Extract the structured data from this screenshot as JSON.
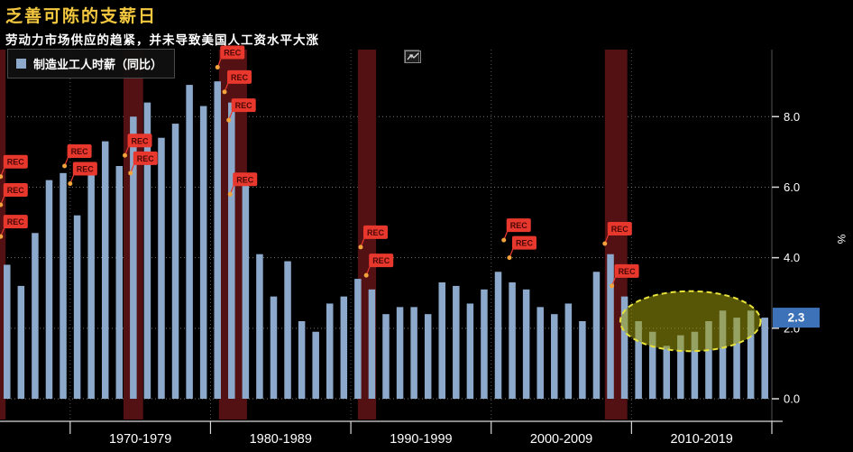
{
  "header": {
    "title": "乏善可陈的支薪日",
    "subtitle": "劳动力市场供应的趋紧，并未导致美国人工资水平大涨",
    "title_color": "#F5C93F",
    "subtitle_color": "#FFFFFF"
  },
  "legend": {
    "label": "制造业工人时薪（同比）",
    "swatch_color": "#8CA9CC"
  },
  "axis": {
    "unit": "%",
    "last_value": "2.3",
    "y_tick_labels": [
      "0.0",
      "2.0",
      "4.0",
      "6.0",
      "8.0"
    ],
    "x_section_labels": [
      "1970-1979",
      "1980-1989",
      "1990-1999",
      "2000-2009",
      "2010-2019"
    ]
  },
  "chart_data": {
    "type": "bar",
    "title": "乏善可陈的支薪日",
    "subtitle": "劳动力市场供应的趋紧，并未导致美国人工资水平大涨",
    "series_name": "制造业工人时薪（同比）",
    "x_start_year": 1965,
    "x_end_year": 2019,
    "values": [
      3.8,
      3.2,
      4.7,
      6.2,
      6.4,
      5.2,
      6.7,
      7.3,
      6.6,
      8.0,
      8.4,
      7.4,
      7.8,
      8.9,
      8.3,
      9.0,
      8.4,
      6.1,
      4.1,
      2.9,
      3.9,
      2.2,
      1.9,
      2.7,
      2.9,
      3.4,
      3.1,
      2.4,
      2.6,
      2.6,
      2.4,
      3.3,
      3.2,
      2.7,
      3.1,
      3.6,
      3.3,
      3.1,
      2.6,
      2.4,
      2.7,
      2.2,
      3.6,
      4.1,
      2.9,
      2.2,
      1.9,
      1.5,
      1.8,
      1.9,
      2.2,
      2.5,
      2.3,
      2.5,
      2.3
    ],
    "ylabel": "%",
    "ylim": [
      0,
      9.9
    ],
    "y_ticks": [
      0,
      2,
      4,
      6,
      8
    ],
    "y_tick_labels": [
      "0.0",
      "2.0",
      "4.0",
      "6.0",
      "8.0"
    ],
    "x_boundaries": [
      1970,
      1980,
      1990,
      2000,
      2010,
      2020
    ],
    "x_axis_sections": [
      "1970-1979",
      "1980-1989",
      "1990-1999",
      "2000-2009",
      "2010-2019"
    ],
    "grid": "dotted",
    "legend_position": "top-left",
    "last_value_label": "2.3",
    "recession_flag_label": "REC",
    "recession_bands": [
      [
        1965.0,
        1965.4
      ],
      [
        1973.8,
        1975.2
      ],
      [
        1980.6,
        1982.6
      ],
      [
        1990.5,
        1991.8
      ],
      [
        2008.1,
        2009.7
      ]
    ],
    "recession_flags": [
      {
        "x": 1965.05,
        "y": 6.3
      },
      {
        "x": 1965.05,
        "y": 5.5
      },
      {
        "x": 1965.05,
        "y": 4.6
      },
      {
        "x": 1969.6,
        "y": 6.6
      },
      {
        "x": 1970.0,
        "y": 6.1
      },
      {
        "x": 1973.9,
        "y": 6.9
      },
      {
        "x": 1974.3,
        "y": 6.4
      },
      {
        "x": 1980.5,
        "y": 9.4
      },
      {
        "x": 1981.0,
        "y": 8.7
      },
      {
        "x": 1981.3,
        "y": 7.9
      },
      {
        "x": 1981.4,
        "y": 5.8
      },
      {
        "x": 1990.7,
        "y": 4.3
      },
      {
        "x": 1991.1,
        "y": 3.5
      },
      {
        "x": 2000.9,
        "y": 4.5
      },
      {
        "x": 2001.3,
        "y": 4.0
      },
      {
        "x": 2008.1,
        "y": 4.4
      },
      {
        "x": 2008.6,
        "y": 3.2
      }
    ],
    "highlight_ellipse": {
      "cx": 2014.2,
      "cy": 2.2,
      "rx": 5.0,
      "ry": 0.85
    },
    "colors": {
      "background": "#000000",
      "bar": "#8CA9CC",
      "recession_band": "#531113",
      "flag": "#E8382D",
      "flag_text": "#4A0705",
      "flag_dot": "#F2A33C",
      "ellipse_fill": "rgba(158,156,12,0.55)",
      "ellipse_stroke": "#E8E23A",
      "grid": "#9A9A9A",
      "axis": "#D9D9D9",
      "last_value_bg": "#3D72B8",
      "title": "#F5C93F",
      "text": "#FFFFFF"
    }
  }
}
